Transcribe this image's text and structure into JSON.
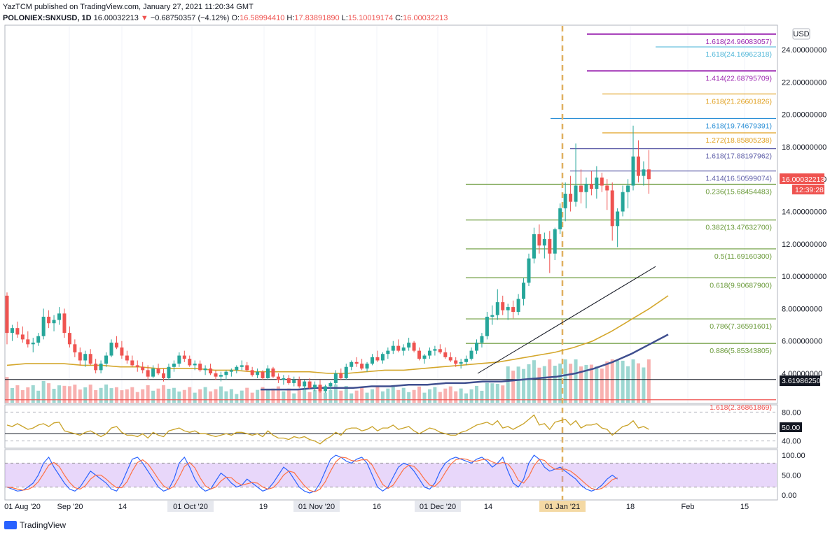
{
  "header": {
    "published": "YazTCM published on TradingView.com, January 27, 2021 11:20:34 GMT",
    "symbol": "POLONIEX:SNXUSD, 1D",
    "last": "16.00032213",
    "change": "−0.68750357 (−4.12%)",
    "o_label": "O:",
    "o": "16.58994410",
    "h_label": "H:",
    "h": "17.83891890",
    "l_label": "L:",
    "l": "15.10019174",
    "c_label": "C:",
    "c": "16.00032213"
  },
  "currency_badge": "USD",
  "price_badge": {
    "value": "16.00032213",
    "countdown": "12:39:28",
    "color": "#ef5350"
  },
  "line_badge": "3.61986250",
  "rsi_badge": "50.00",
  "brand": "TradingView",
  "chart_data": {
    "type": "candlestick",
    "price_axis": {
      "range": [
        2.0,
        25.0
      ],
      "ticks": [
        "24.00000000",
        "22.00000000",
        "20.00000000",
        "18.00000000",
        "16.00000000",
        "14.00000000",
        "12.00000000",
        "10.00000000",
        "8.00000000",
        "6.00000000",
        "4.00000000"
      ]
    },
    "fib_levels": [
      {
        "label": "1.618(24.96083057)",
        "value": 24.96083057,
        "color": "#9c27b0"
      },
      {
        "label": "1.618(24.16962318)",
        "value": 24.16962318,
        "color": "#4fb6d8"
      },
      {
        "label": "1.414(22.68795709)",
        "value": 22.68795709,
        "color": "#9c27b0"
      },
      {
        "label": "1.618(21.26601826)",
        "value": 21.26601826,
        "color": "#e0a020"
      },
      {
        "label": "1.618(19.74679391)",
        "value": 19.74679391,
        "color": "#2b8fd6"
      },
      {
        "label": "1.272(18.85805238)",
        "value": 18.85805238,
        "color": "#e0a020"
      },
      {
        "label": "1.618(17.88197962)",
        "value": 17.88197962,
        "color": "#5e5ea8"
      },
      {
        "label": "1.414(16.50599074)",
        "value": 16.50599074,
        "color": "#5e5ea8"
      },
      {
        "label": "0.236(15.68454483)",
        "value": 15.68454483,
        "color": "#6a9a3a"
      },
      {
        "label": "0.382(13.47632700)",
        "value": 13.476327,
        "color": "#6a9a3a"
      },
      {
        "label": "0.5(11.69160300)",
        "value": 11.691603,
        "color": "#6a9a3a"
      },
      {
        "label": "0.618(9.90687900)",
        "value": 9.906879,
        "color": "#6a9a3a"
      },
      {
        "label": "0.786(7.36591601)",
        "value": 7.36591601,
        "color": "#6a9a3a"
      },
      {
        "label": "0.886(5.85343805)",
        "value": 5.85343805,
        "color": "#6a9a3a"
      },
      {
        "label": "1.618(2.36861869)",
        "value": 2.36861869,
        "color": "#ef5350"
      }
    ],
    "support_line": 3.6198625,
    "time_axis": [
      "01 Aug '20",
      "Sep '20",
      "14",
      "01 Oct '20",
      "19",
      "01 Nov '20",
      "16",
      "01 Dec '20",
      "14",
      "01 Jan '21",
      "18",
      "Feb",
      "15"
    ],
    "time_ticks_highlight": [
      "01 Oct '20",
      "01 Nov '20",
      "01 Dec '20",
      "01 Jan '21"
    ],
    "candles": [
      [
        8.8,
        9.0,
        5.8,
        6.5
      ],
      [
        6.5,
        7.0,
        6.0,
        6.8
      ],
      [
        6.8,
        7.2,
        6.2,
        6.4
      ],
      [
        6.4,
        6.9,
        5.9,
        6.1
      ],
      [
        6.1,
        6.6,
        5.6,
        5.8
      ],
      [
        5.8,
        6.2,
        5.3,
        5.9
      ],
      [
        5.9,
        6.5,
        5.7,
        6.3
      ],
      [
        6.3,
        8.0,
        6.1,
        7.5
      ],
      [
        7.5,
        7.9,
        6.8,
        7.1
      ],
      [
        7.1,
        7.6,
        6.6,
        7.3
      ],
      [
        7.3,
        8.1,
        7.0,
        7.7
      ],
      [
        7.7,
        8.0,
        6.2,
        6.5
      ],
      [
        6.5,
        6.9,
        5.6,
        5.8
      ],
      [
        5.8,
        6.1,
        5.0,
        5.3
      ],
      [
        5.3,
        5.6,
        4.5,
        4.8
      ],
      [
        4.8,
        5.4,
        4.4,
        5.2
      ],
      [
        5.2,
        5.5,
        4.5,
        4.6
      ],
      [
        4.6,
        4.9,
        4.0,
        4.2
      ],
      [
        4.2,
        4.8,
        4.0,
        4.6
      ],
      [
        4.6,
        5.3,
        4.4,
        5.1
      ],
      [
        5.1,
        6.1,
        5.0,
        5.9
      ],
      [
        5.9,
        6.3,
        5.5,
        5.6
      ],
      [
        5.6,
        6.0,
        4.9,
        5.1
      ],
      [
        5.1,
        5.4,
        4.6,
        4.8
      ],
      [
        4.8,
        5.1,
        4.4,
        4.5
      ],
      [
        4.5,
        4.8,
        4.1,
        4.4
      ],
      [
        4.4,
        4.7,
        4.0,
        4.2
      ],
      [
        4.2,
        4.5,
        3.6,
        3.8
      ],
      [
        3.8,
        4.5,
        3.7,
        4.3
      ],
      [
        4.3,
        4.6,
        3.9,
        4.0
      ],
      [
        4.0,
        4.3,
        3.5,
        3.7
      ],
      [
        3.7,
        4.6,
        3.6,
        4.4
      ],
      [
        4.4,
        4.8,
        4.1,
        4.6
      ],
      [
        4.6,
        5.3,
        4.4,
        5.1
      ],
      [
        5.1,
        5.4,
        4.7,
        4.9
      ],
      [
        4.9,
        5.1,
        4.4,
        4.5
      ],
      [
        4.5,
        4.8,
        4.2,
        4.6
      ],
      [
        4.6,
        4.8,
        4.1,
        4.2
      ],
      [
        4.2,
        4.5,
        3.9,
        4.3
      ],
      [
        4.3,
        4.6,
        3.9,
        4.0
      ],
      [
        4.0,
        4.2,
        3.6,
        3.8
      ],
      [
        3.8,
        4.1,
        3.5,
        3.9
      ],
      [
        3.9,
        4.2,
        3.6,
        4.1
      ],
      [
        4.1,
        4.3,
        3.8,
        4.2
      ],
      [
        4.2,
        4.5,
        4.0,
        4.4
      ],
      [
        4.4,
        4.8,
        4.2,
        4.5
      ],
      [
        4.5,
        4.7,
        4.1,
        4.2
      ],
      [
        4.2,
        4.4,
        3.8,
        3.9
      ],
      [
        3.9,
        4.3,
        3.7,
        4.1
      ],
      [
        4.1,
        4.2,
        3.6,
        3.7
      ],
      [
        3.7,
        4.5,
        3.6,
        4.3
      ],
      [
        4.3,
        4.4,
        3.7,
        3.8
      ],
      [
        3.8,
        4.0,
        3.4,
        3.6
      ],
      [
        3.6,
        3.9,
        3.3,
        3.7
      ],
      [
        3.7,
        3.9,
        3.3,
        3.4
      ],
      [
        3.4,
        3.8,
        3.2,
        3.6
      ],
      [
        3.6,
        3.8,
        3.1,
        3.2
      ],
      [
        3.2,
        3.6,
        3.0,
        3.5
      ],
      [
        3.5,
        3.7,
        3.0,
        3.1
      ],
      [
        3.1,
        3.5,
        2.9,
        3.3
      ],
      [
        3.3,
        3.6,
        2.8,
        2.9
      ],
      [
        2.9,
        3.3,
        2.8,
        3.2
      ],
      [
        3.2,
        3.5,
        3.0,
        3.4
      ],
      [
        3.4,
        4.2,
        3.3,
        4.0
      ],
      [
        4.0,
        4.3,
        3.6,
        3.7
      ],
      [
        3.7,
        4.6,
        3.6,
        4.4
      ],
      [
        4.4,
        4.8,
        4.2,
        4.7
      ],
      [
        4.7,
        5.0,
        4.4,
        4.6
      ],
      [
        4.6,
        4.9,
        4.2,
        4.3
      ],
      [
        4.3,
        4.7,
        4.1,
        4.6
      ],
      [
        4.6,
        5.2,
        4.5,
        5.0
      ],
      [
        5.0,
        5.4,
        4.7,
        4.8
      ],
      [
        4.8,
        5.3,
        4.6,
        5.2
      ],
      [
        5.2,
        5.6,
        4.9,
        5.4
      ],
      [
        5.4,
        6.0,
        5.2,
        5.7
      ],
      [
        5.7,
        6.1,
        5.3,
        5.4
      ],
      [
        5.4,
        5.8,
        5.1,
        5.6
      ],
      [
        5.6,
        6.2,
        5.4,
        5.9
      ],
      [
        5.9,
        6.0,
        5.3,
        5.4
      ],
      [
        5.4,
        5.6,
        4.8,
        4.9
      ],
      [
        4.9,
        5.2,
        4.6,
        5.1
      ],
      [
        5.1,
        5.6,
        4.9,
        5.4
      ],
      [
        5.4,
        5.7,
        5.1,
        5.5
      ],
      [
        5.5,
        5.8,
        5.2,
        5.3
      ],
      [
        5.3,
        5.6,
        4.9,
        5.0
      ],
      [
        5.0,
        5.3,
        4.7,
        4.8
      ],
      [
        4.8,
        5.0,
        4.4,
        4.6
      ],
      [
        4.6,
        4.9,
        4.3,
        4.7
      ],
      [
        4.7,
        5.1,
        4.5,
        4.9
      ],
      [
        4.9,
        5.6,
        4.8,
        5.4
      ],
      [
        5.4,
        6.1,
        5.2,
        5.9
      ],
      [
        5.9,
        6.5,
        5.6,
        6.3
      ],
      [
        6.3,
        7.8,
        6.1,
        7.5
      ],
      [
        7.5,
        8.2,
        7.0,
        7.6
      ],
      [
        7.6,
        9.2,
        7.3,
        8.4
      ],
      [
        8.4,
        8.8,
        7.6,
        7.9
      ],
      [
        7.9,
        8.3,
        7.3,
        8.1
      ],
      [
        8.1,
        8.5,
        7.4,
        7.8
      ],
      [
        7.8,
        8.9,
        7.6,
        8.6
      ],
      [
        8.6,
        9.9,
        8.2,
        9.6
      ],
      [
        9.6,
        11.4,
        9.4,
        11.1
      ],
      [
        11.1,
        13.0,
        10.8,
        12.6
      ],
      [
        12.6,
        13.2,
        11.4,
        11.9
      ],
      [
        11.9,
        12.7,
        11.1,
        12.3
      ],
      [
        12.3,
        12.8,
        10.2,
        11.4
      ],
      [
        11.4,
        13.0,
        11.0,
        12.9
      ],
      [
        12.9,
        14.5,
        12.6,
        14.2
      ],
      [
        14.2,
        15.8,
        13.4,
        15.1
      ],
      [
        15.1,
        16.2,
        14.0,
        14.6
      ],
      [
        14.6,
        18.2,
        14.3,
        15.6
      ],
      [
        15.6,
        16.6,
        14.5,
        15.2
      ],
      [
        15.2,
        16.1,
        14.2,
        15.7
      ],
      [
        15.7,
        16.5,
        15.0,
        15.4
      ],
      [
        15.4,
        16.8,
        14.8,
        16.1
      ],
      [
        16.1,
        16.4,
        15.2,
        15.6
      ],
      [
        15.6,
        16.0,
        14.1,
        15.3
      ],
      [
        15.3,
        15.8,
        12.2,
        13.1
      ],
      [
        13.1,
        14.2,
        11.8,
        14.0
      ],
      [
        14.0,
        15.6,
        13.7,
        15.2
      ],
      [
        15.2,
        16.0,
        14.2,
        15.6
      ],
      [
        15.6,
        19.3,
        15.3,
        17.4
      ],
      [
        17.4,
        18.4,
        15.8,
        16.2
      ],
      [
        16.2,
        17.1,
        15.6,
        16.6
      ],
      [
        16.6,
        17.8,
        15.1,
        16.0
      ]
    ],
    "ema_short": [
      4.5,
      4.6,
      4.6,
      4.6,
      4.5,
      4.5,
      4.4,
      4.4,
      4.3,
      4.3,
      4.3,
      4.2,
      4.2,
      4.1,
      4.1,
      4.1,
      4.1,
      4.0,
      4.0,
      4.1,
      4.2,
      4.2,
      4.3,
      4.4,
      4.5,
      4.6,
      4.7,
      4.9,
      5.1,
      5.3,
      5.6,
      6.0,
      6.6,
      7.3,
      8.0,
      8.8
    ],
    "ema_long": [
      3.0,
      3.0,
      3.0,
      3.1,
      3.1,
      3.1,
      3.2,
      3.2,
      3.3,
      3.3,
      3.4,
      3.4,
      3.5,
      3.5,
      3.6,
      3.7,
      3.8,
      4.0,
      4.3,
      4.7,
      5.2,
      5.8,
      6.4
    ],
    "trendline": [
      [
        4.0,
        104
      ],
      [
        10.6,
        140
      ]
    ],
    "rsi": {
      "ticks": [
        "80.00",
        "40.00"
      ],
      "values": [
        62,
        60,
        64,
        60,
        56,
        58,
        62,
        64,
        60,
        65,
        66,
        54,
        52,
        50,
        48,
        52,
        54,
        50,
        46,
        50,
        58,
        60,
        52,
        48,
        48,
        46,
        50,
        44,
        52,
        48,
        46,
        54,
        56,
        58,
        54,
        52,
        54,
        50,
        50,
        48,
        46,
        48,
        50,
        48,
        52,
        52,
        50,
        48,
        50,
        46,
        54,
        48,
        44,
        44,
        42,
        46,
        44,
        46,
        42,
        40,
        36,
        42,
        46,
        52,
        48,
        56,
        58,
        58,
        54,
        56,
        60,
        54,
        58,
        58,
        62,
        56,
        58,
        60,
        54,
        50,
        54,
        58,
        56,
        52,
        50,
        48,
        48,
        52,
        54,
        58,
        62,
        64,
        66,
        62,
        68,
        58,
        60,
        56,
        60,
        64,
        70,
        76,
        62,
        64,
        56,
        66,
        68,
        70,
        62,
        68,
        58,
        62,
        62,
        64,
        58,
        56,
        48,
        54,
        60,
        62,
        68,
        58,
        60,
        56
      ]
    },
    "stoch": {
      "ticks": [
        "100.00",
        "50.00",
        "0.00"
      ],
      "k": [
        20,
        15,
        10,
        12,
        20,
        30,
        50,
        80,
        95,
        70,
        50,
        30,
        15,
        10,
        20,
        40,
        60,
        50,
        40,
        30,
        15,
        10,
        30,
        60,
        90,
        95,
        80,
        60,
        40,
        20,
        10,
        15,
        40,
        80,
        95,
        70,
        40,
        20,
        10,
        15,
        35,
        55,
        45,
        30,
        20,
        25,
        40,
        30,
        20,
        10,
        15,
        30,
        50,
        70,
        60,
        40,
        20,
        10,
        5,
        10,
        30,
        60,
        90,
        100,
        95,
        85,
        80,
        90,
        95,
        80,
        50,
        20,
        10,
        20,
        45,
        70,
        80,
        75,
        60,
        40,
        20,
        15,
        30,
        60,
        80,
        90,
        95,
        90,
        85,
        80,
        90,
        95,
        85,
        70,
        80,
        95,
        60,
        30,
        20,
        40,
        80,
        100,
        90,
        70,
        60,
        65,
        70,
        60,
        50,
        40,
        25,
        15,
        10,
        15,
        25,
        40,
        50,
        40
      ]
    }
  }
}
